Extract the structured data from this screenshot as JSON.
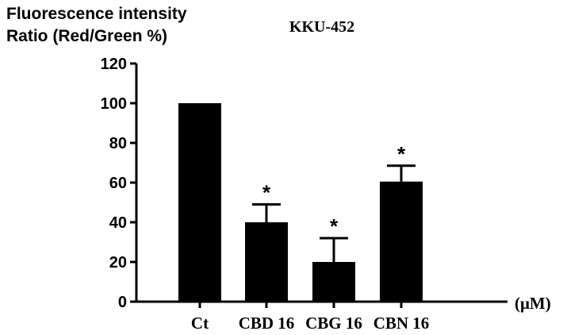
{
  "chart_data": {
    "type": "bar",
    "title": "KKU-452",
    "ylabel": [
      "Fluorescence intensity",
      "Ratio (Red/Green %)"
    ],
    "xlabel": "",
    "x_unit": "(μM)",
    "categories": [
      "Ct",
      "CBD 16",
      "CBG 16",
      "CBN 16"
    ],
    "values": [
      100,
      40,
      20,
      60.5
    ],
    "error_upper": [
      0,
      9,
      12,
      8
    ],
    "significance": [
      "",
      "*",
      "*",
      "*"
    ],
    "ylim": [
      0,
      120
    ],
    "yticks": [
      "0",
      "20",
      "40",
      "60",
      "80",
      "100",
      "120"
    ],
    "grid": false,
    "bar_color": "#000000"
  }
}
